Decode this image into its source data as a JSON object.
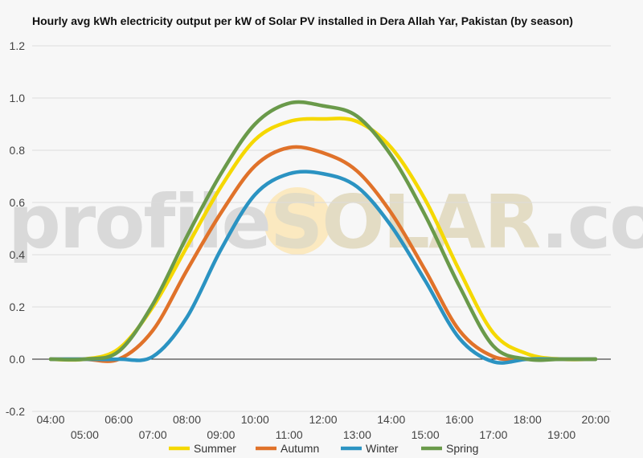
{
  "watermark": {
    "prefix": "profile",
    "middle": "SOLAR",
    "suffix": ".com"
  },
  "chart_data": {
    "type": "line",
    "title": "Hourly avg kWh electricity output per kW of Solar PV installed in Dera Allah Yar, Pakistan (by season)",
    "xlabel": "",
    "ylabel": "",
    "x": [
      "04:00",
      "05:00",
      "06:00",
      "07:00",
      "08:00",
      "09:00",
      "10:00",
      "11:00",
      "12:00",
      "13:00",
      "14:00",
      "15:00",
      "16:00",
      "17:00",
      "18:00",
      "19:00",
      "20:00"
    ],
    "ylim": [
      -0.2,
      1.2
    ],
    "yticks": [
      "-0.2",
      "0.0",
      "0.2",
      "0.4",
      "0.6",
      "0.8",
      "1.0",
      "1.2"
    ],
    "grid": true,
    "legend_position": "bottom",
    "series": [
      {
        "name": "Summer",
        "color": "#f5d800",
        "values": [
          0,
          0,
          0.04,
          0.2,
          0.43,
          0.66,
          0.84,
          0.91,
          0.92,
          0.91,
          0.81,
          0.61,
          0.34,
          0.1,
          0.02,
          0,
          0
        ]
      },
      {
        "name": "Autumn",
        "color": "#e0722a",
        "values": [
          0,
          0,
          0.0,
          0.11,
          0.34,
          0.56,
          0.74,
          0.81,
          0.79,
          0.72,
          0.56,
          0.34,
          0.11,
          0.01,
          0,
          0,
          0
        ]
      },
      {
        "name": "Winter",
        "color": "#2b93c2",
        "values": [
          0,
          0,
          0,
          0.01,
          0.16,
          0.42,
          0.63,
          0.71,
          0.71,
          0.66,
          0.51,
          0.3,
          0.08,
          -0.01,
          0,
          0,
          0
        ]
      },
      {
        "name": "Spring",
        "color": "#6a9a4a",
        "values": [
          0,
          0,
          0.03,
          0.21,
          0.47,
          0.71,
          0.9,
          0.98,
          0.97,
          0.93,
          0.78,
          0.55,
          0.28,
          0.05,
          0,
          0,
          0
        ]
      }
    ]
  }
}
